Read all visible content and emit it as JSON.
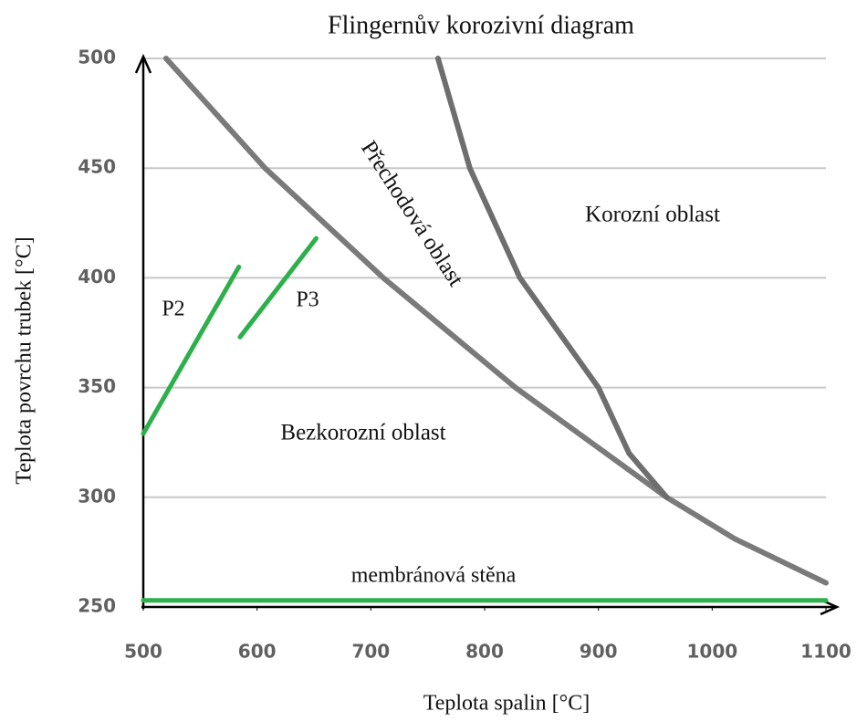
{
  "chart_data": {
    "type": "line",
    "title": "Flingernův korozivní diagram",
    "x_label": "Teplota spalin [°C]",
    "y_label": "Teplota povrchu trubek [°C]",
    "xlim": [
      500,
      1100
    ],
    "xticks": [
      500,
      600,
      700,
      800,
      900,
      1000,
      1100
    ],
    "ylim": [
      250,
      500
    ],
    "yticks": [
      250,
      300,
      350,
      400,
      450,
      500
    ],
    "grid": true,
    "annotations": [
      "Přechodová oblast",
      "Korozní oblast",
      "Bezkorozní oblast"
    ],
    "series": [
      {
        "color": "#7a7a7a",
        "x": [
          520,
          607,
          711,
          827,
          960,
          1020,
          1100
        ],
        "values": [
          500,
          450,
          400,
          350,
          300,
          281,
          261
        ]
      },
      {
        "color": "#6e6e6e",
        "x": [
          759,
          787,
          831,
          900,
          927,
          960
        ],
        "values": [
          500,
          450,
          400,
          350,
          320,
          300
        ]
      },
      {
        "name": "P2",
        "color": "#2db04b",
        "x": [
          500,
          584
        ],
        "values": [
          329,
          405
        ]
      },
      {
        "name": "P3",
        "color": "#2db04b",
        "x": [
          585,
          652
        ],
        "values": [
          373,
          418
        ]
      },
      {
        "name": "membránová stěna",
        "color": "#2db04b",
        "x": [
          500,
          1100
        ],
        "values": [
          253,
          253
        ]
      }
    ]
  }
}
